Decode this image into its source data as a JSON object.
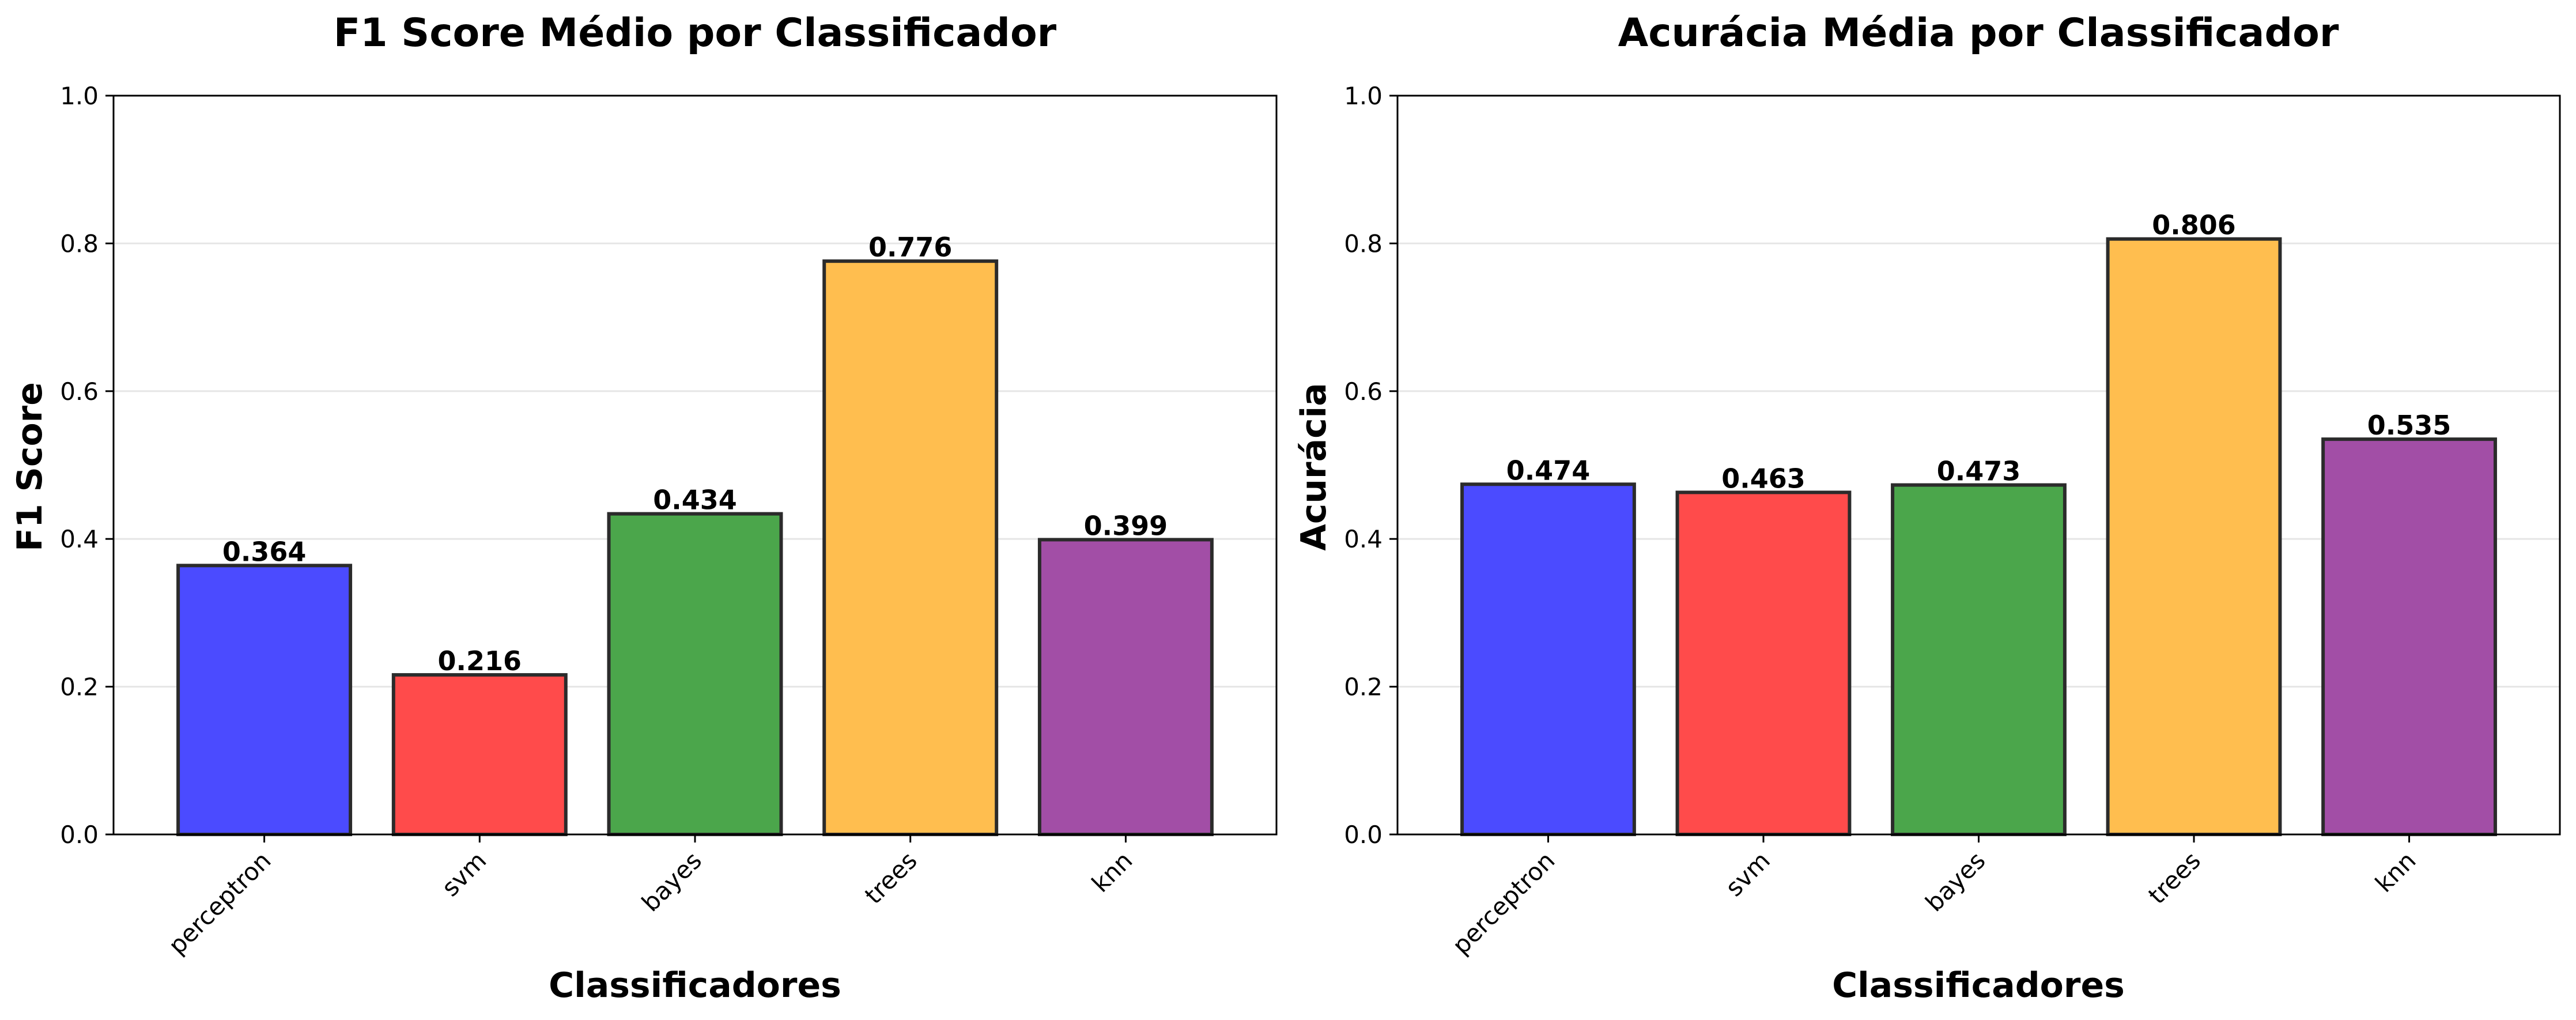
{
  "chart_data": [
    {
      "type": "bar",
      "title": "F1 Score Médio por Classificador",
      "xlabel": "Classificadores",
      "ylabel": "F1 Score",
      "categories": [
        "perceptron",
        "svm",
        "bayes",
        "trees",
        "knn"
      ],
      "values": [
        0.364,
        0.216,
        0.434,
        0.776,
        0.399
      ],
      "value_labels": [
        "0.364",
        "0.216",
        "0.434",
        "0.776",
        "0.399"
      ],
      "colors": [
        "#4b4bff",
        "#ff4b4b",
        "#4ba64b",
        "#ffbe4f",
        "#a24ea6"
      ],
      "ylim": [
        0,
        1
      ],
      "yticks": [
        0,
        0.2,
        0.4,
        0.6,
        0.8,
        1.0
      ],
      "ytick_labels": [
        "0.0",
        "0.2",
        "0.4",
        "0.6",
        "0.8",
        "1.0"
      ],
      "grid": "horizontal",
      "legend": "none"
    },
    {
      "type": "bar",
      "title": "Acurácia Média por Classificador",
      "xlabel": "Classificadores",
      "ylabel": "Acurácia",
      "categories": [
        "perceptron",
        "svm",
        "bayes",
        "trees",
        "knn"
      ],
      "values": [
        0.474,
        0.463,
        0.473,
        0.806,
        0.535
      ],
      "value_labels": [
        "0.474",
        "0.463",
        "0.473",
        "0.806",
        "0.535"
      ],
      "colors": [
        "#4b4bff",
        "#ff4b4b",
        "#4ba64b",
        "#ffbe4f",
        "#a24ea6"
      ],
      "ylim": [
        0,
        1
      ],
      "yticks": [
        0,
        0.2,
        0.4,
        0.6,
        0.8,
        1.0
      ],
      "ytick_labels": [
        "0.0",
        "0.2",
        "0.4",
        "0.6",
        "0.8",
        "1.0"
      ],
      "grid": "horizontal",
      "legend": "none"
    }
  ],
  "style": {
    "bar_edge_color": "#2b2b2b",
    "axis_color": "#000000",
    "grid_color": "#e6e6e6"
  }
}
